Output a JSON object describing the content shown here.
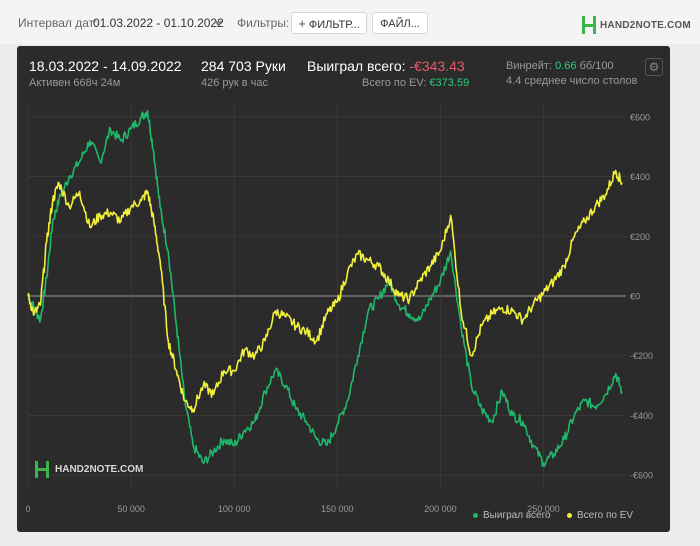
{
  "toolbar": {
    "date_label": "Интервал дат:",
    "date_value": "01.03.2022 - 01.10.2022",
    "filters_label": "Фильтры:",
    "filter_button": "ФИЛЬТР...",
    "file_button": "ФАЙЛ...",
    "logo_text": "HAND2NOTE.COM"
  },
  "summary": {
    "date_range": "18.03.2022 - 14.09.2022",
    "active": "Активен 668ч 24м",
    "hands": "284 703 Руки",
    "per_hour": "426 рук в час",
    "won_label": "Выиграл всего:",
    "won_value": "-€343.43",
    "ev_label": "Всего по EV:",
    "ev_value": "€373.59",
    "winrate_label": "Винрейт:",
    "winrate_value": "0.66",
    "winrate_unit": "бб/100",
    "tables": "4.4 среднее число столов"
  },
  "watermark": "HAND2NOTE.COM",
  "colors": {
    "won": "#1fb86a",
    "ev": "#f0f03a",
    "panel": "#2b2b2b",
    "accent": "#3cb44b"
  },
  "chart_data": {
    "type": "line",
    "xlim": [
      0,
      290000
    ],
    "ylim": [
      -650,
      650
    ],
    "x_ticks": [
      0,
      50000,
      100000,
      150000,
      200000,
      250000
    ],
    "x_tick_labels": [
      "0",
      "50 000",
      "100 000",
      "150 000",
      "200 000",
      "250 000"
    ],
    "y_ticks": [
      600,
      400,
      200,
      0,
      -200,
      -400,
      -600
    ],
    "y_tick_labels": [
      "€600",
      "€400",
      "€200",
      "€0",
      "-€200",
      "-€400",
      "-€600"
    ],
    "grid": true,
    "legend_position": "bottom-right",
    "series": [
      {
        "name": "Выиграл всего",
        "color": "#1fb86a",
        "x": [
          0,
          3000,
          6000,
          9000,
          12000,
          15000,
          20000,
          25000,
          30000,
          35000,
          40000,
          45000,
          50000,
          55000,
          58000,
          61000,
          64000,
          68000,
          72000,
          76000,
          80000,
          85000,
          90000,
          95000,
          100000,
          105000,
          110000,
          115000,
          120000,
          125000,
          130000,
          135000,
          140000,
          145000,
          150000,
          155000,
          160000,
          165000,
          170000,
          175000,
          180000,
          185000,
          190000,
          195000,
          200000,
          205000,
          210000,
          215000,
          220000,
          225000,
          230000,
          235000,
          240000,
          245000,
          250000,
          255000,
          260000,
          265000,
          270000,
          275000,
          280000,
          285000,
          288000
        ],
        "y": [
          0,
          -40,
          -80,
          60,
          250,
          320,
          400,
          450,
          520,
          450,
          560,
          520,
          560,
          600,
          620,
          480,
          300,
          150,
          -100,
          -350,
          -500,
          -560,
          -520,
          -480,
          -500,
          -450,
          -420,
          -320,
          -250,
          -300,
          -380,
          -420,
          -480,
          -500,
          -430,
          -350,
          -200,
          -50,
          -10,
          50,
          -30,
          -60,
          -80,
          -10,
          50,
          150,
          -100,
          -300,
          -380,
          -420,
          -320,
          -400,
          -420,
          -500,
          -560,
          -530,
          -480,
          -400,
          -350,
          -370,
          -330,
          -260,
          -320
        ]
      },
      {
        "name": "Всего по EV",
        "color": "#f0f03a",
        "x": [
          0,
          3000,
          6000,
          9000,
          12000,
          15000,
          20000,
          25000,
          30000,
          35000,
          40000,
          45000,
          50000,
          55000,
          58000,
          61000,
          64000,
          68000,
          72000,
          76000,
          80000,
          85000,
          90000,
          95000,
          100000,
          105000,
          110000,
          115000,
          120000,
          125000,
          130000,
          135000,
          140000,
          145000,
          150000,
          155000,
          160000,
          165000,
          170000,
          175000,
          180000,
          185000,
          190000,
          195000,
          200000,
          205000,
          210000,
          215000,
          220000,
          225000,
          230000,
          235000,
          240000,
          245000,
          250000,
          255000,
          260000,
          265000,
          270000,
          275000,
          280000,
          285000,
          288000
        ],
        "y": [
          0,
          -60,
          -30,
          180,
          320,
          380,
          300,
          350,
          230,
          270,
          280,
          250,
          300,
          320,
          350,
          250,
          120,
          -150,
          -250,
          -350,
          -380,
          -300,
          -330,
          -250,
          -250,
          -180,
          -200,
          -150,
          -50,
          -70,
          -100,
          -120,
          -150,
          -60,
          -20,
          80,
          140,
          120,
          100,
          50,
          0,
          -10,
          50,
          100,
          150,
          270,
          -50,
          -200,
          -100,
          -60,
          -40,
          -50,
          -80,
          -30,
          10,
          50,
          100,
          200,
          250,
          300,
          340,
          420,
          380
        ]
      }
    ]
  }
}
